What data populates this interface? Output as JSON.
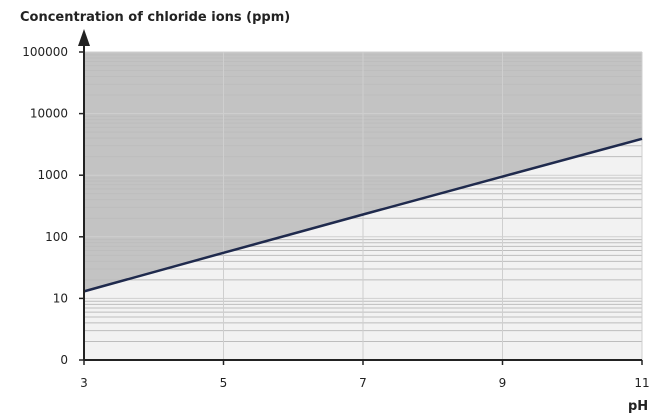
{
  "chart_data": {
    "type": "line",
    "ylabel": "Concentration of chloride ions (ppm)",
    "xlabel": "pH",
    "x_ticks": [
      3,
      5,
      7,
      9,
      11
    ],
    "y_ticks": [
      "0",
      "10",
      "100",
      "1000",
      "10000",
      "100000"
    ],
    "y_scale": "log",
    "xlim": [
      3,
      11
    ],
    "ylim_labels": [
      "0",
      "100000"
    ],
    "grid": true,
    "series": [
      {
        "x": [
          3,
          5,
          7,
          9,
          11
        ],
        "y": [
          13,
          55,
          230,
          950,
          3900
        ]
      }
    ],
    "colors": {
      "line": "#1f2a4d",
      "shaded_region": "#c3c3c3",
      "plot_background": "#f2f2f2",
      "major_grid": "#cfcfcf",
      "minor_grid": "#bdbdbd",
      "axis": "#222222"
    }
  }
}
